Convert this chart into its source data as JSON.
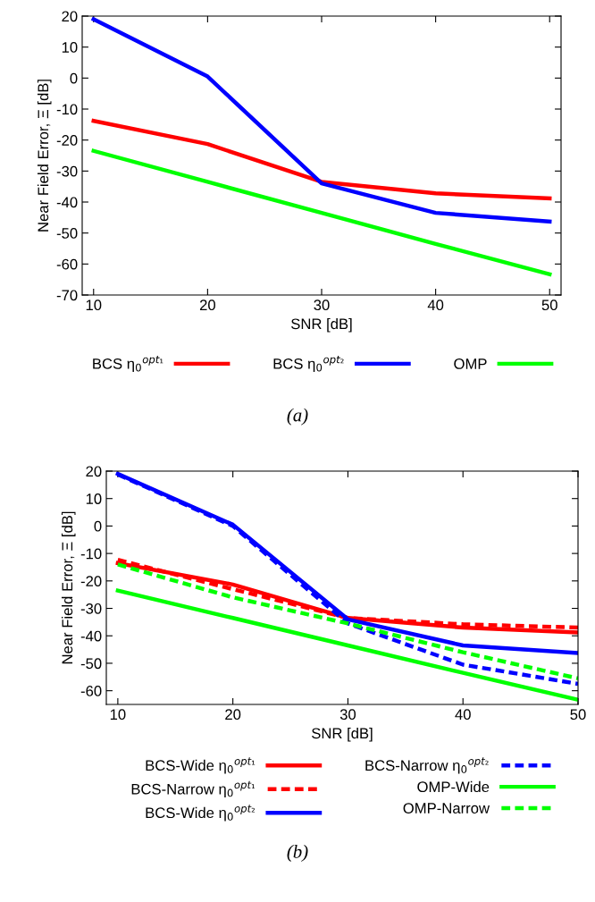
{
  "chart_data": [
    {
      "type": "line",
      "xlabel": "SNR [dB]",
      "ylabel": "Near Field Error, Ξ [dB]",
      "x": [
        10,
        20,
        30,
        40,
        50
      ],
      "xlim": [
        9,
        51
      ],
      "xticks": [
        10,
        20,
        30,
        40,
        50
      ],
      "ylim": [
        -70,
        20
      ],
      "yticks": [
        -70,
        -60,
        -50,
        -40,
        -30,
        -20,
        -10,
        0,
        10,
        20
      ],
      "grid": false,
      "legend": "bottom",
      "line_style": "solid",
      "marker": "none",
      "annotations": [
        "(a)"
      ],
      "series": [
        {
          "name": "BCS η$_{0}$$^{opt₁}$",
          "color": "#ff0000",
          "values": [
            -13.8,
            -21.3,
            -33.5,
            -37.2,
            -38.8
          ]
        },
        {
          "name": "BCS η$_{0}$$^{opt₂}$",
          "color": "#0000ff",
          "values": [
            19,
            0.5,
            -34,
            -43.5,
            -46.3
          ]
        },
        {
          "name": "OMP",
          "color": "#00ff00",
          "values": [
            -23.5,
            -33.5,
            -43.5,
            -53.5,
            -63.3
          ]
        }
      ]
    },
    {
      "type": "line",
      "xlabel": "SNR [dB]",
      "ylabel": "Near Field Error, Ξ [dB]",
      "x": [
        10,
        20,
        30,
        40,
        50
      ],
      "xlim": [
        9,
        50
      ],
      "xticks": [
        10,
        20,
        30,
        40,
        50
      ],
      "ylim": [
        -65,
        20
      ],
      "yticks": [
        -60,
        -50,
        -40,
        -30,
        -20,
        -10,
        0,
        10,
        20
      ],
      "grid": false,
      "legend": "bottom",
      "marker": "none",
      "annotations": [
        "(b)"
      ],
      "series": [
        {
          "name": "BCS-Wide η$_{0}$$^{opt₁}$",
          "color": "#ff0000",
          "line_style": "solid",
          "values": [
            -13.5,
            -21.3,
            -33.5,
            -37,
            -38.8
          ]
        },
        {
          "name": "BCS-Narrow η$_{0}$$^{opt₁}$",
          "color": "#ff0000",
          "line_style": "dashed",
          "values": [
            -12.3,
            -23,
            -33.5,
            -35.8,
            -37
          ]
        },
        {
          "name": "BCS-Wide η$_{0}$$^{opt₂}$",
          "color": "#0000ff",
          "line_style": "solid",
          "values": [
            19,
            0.5,
            -34,
            -43.5,
            -46.3
          ]
        },
        {
          "name": "BCS-Narrow η$_{0}$$^{opt₂}$",
          "color": "#0000ff",
          "line_style": "dashed",
          "values": [
            18.8,
            0,
            -35.5,
            -50.5,
            -57.5
          ]
        },
        {
          "name": "OMP-Wide",
          "color": "#00ff00",
          "line_style": "solid",
          "values": [
            -23.5,
            -33.5,
            -43.5,
            -53.5,
            -63.3
          ]
        },
        {
          "name": "OMP-Narrow",
          "color": "#00ff00",
          "line_style": "dashed",
          "values": [
            -14,
            -26,
            -35.5,
            -46,
            -55.5
          ]
        }
      ]
    }
  ]
}
